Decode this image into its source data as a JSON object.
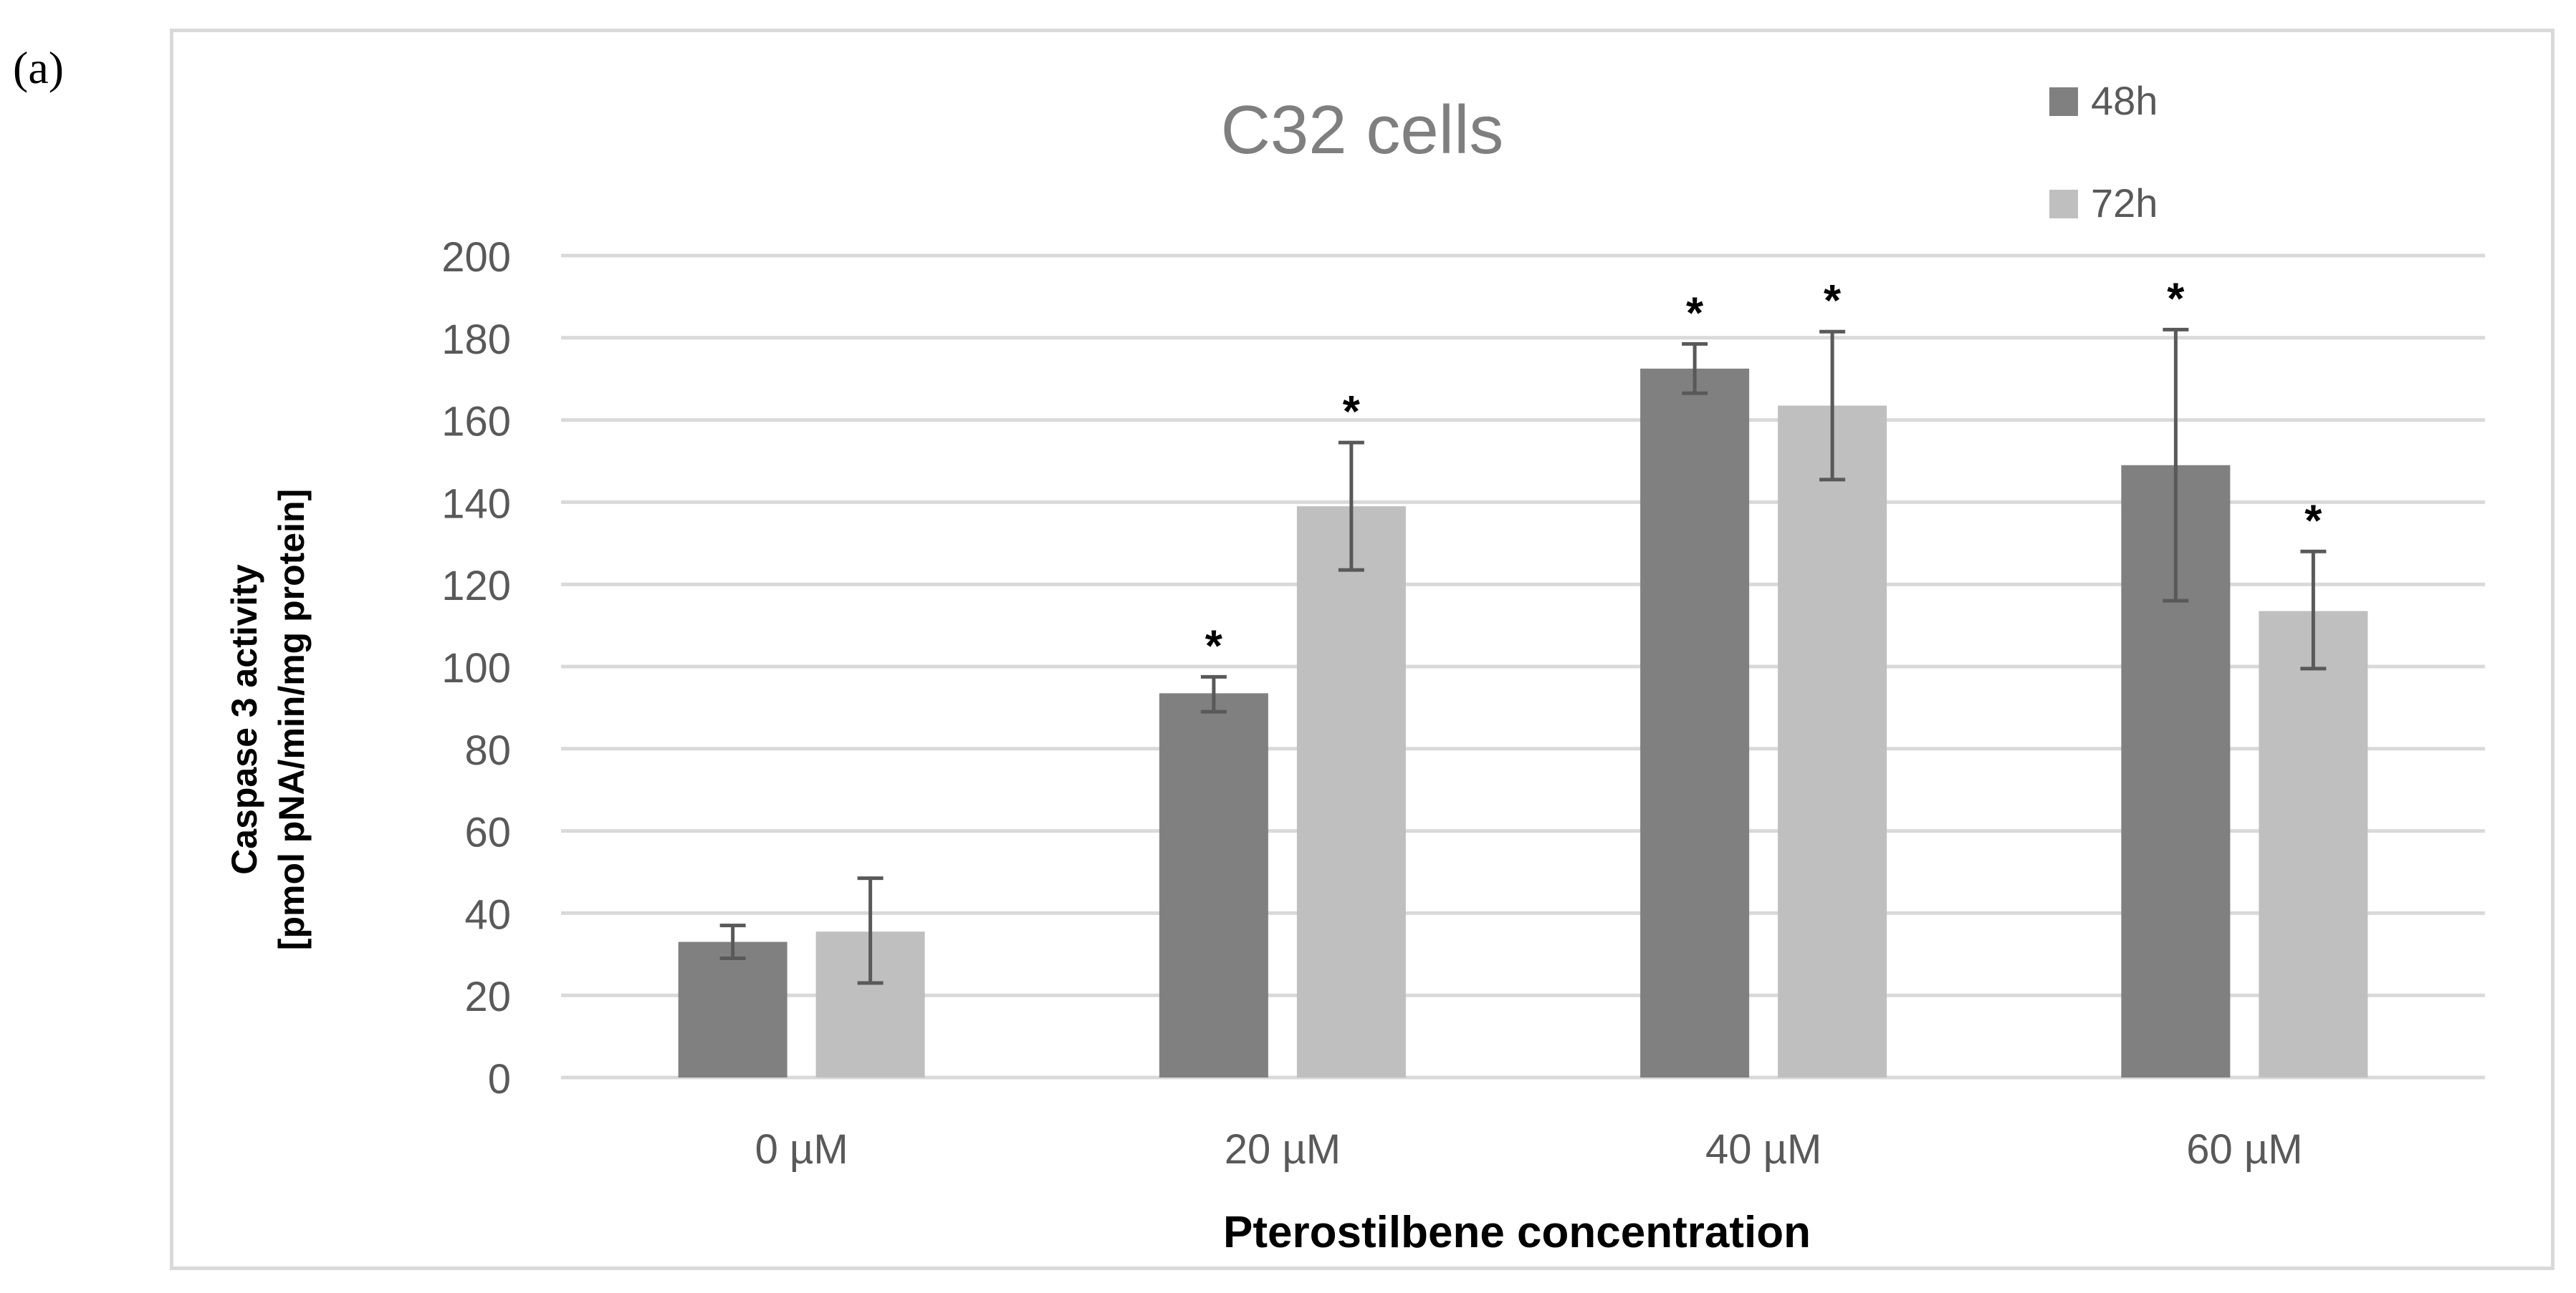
{
  "panel_label": "(a)",
  "chart_data": {
    "type": "bar",
    "title": "C32 cells",
    "xlabel": "Pterostilbene concentration",
    "ylabel_line1": "Caspase 3 activity",
    "ylabel_line2": "[pmol pNA/min/mg protein]",
    "ylim": [
      0,
      200
    ],
    "yticks": [
      "0",
      "20",
      "40",
      "60",
      "80",
      "100",
      "120",
      "140",
      "160",
      "180",
      "200"
    ],
    "grid": true,
    "legend_position": "top-right",
    "categories": [
      "0 µM",
      "20 µM",
      "40 µM",
      "60 µM"
    ],
    "series": [
      {
        "name": "48h",
        "color": "#808080",
        "values": [
          33,
          93.5,
          172.5,
          149
        ],
        "error_low": [
          29,
          89,
          166.5,
          116
        ],
        "error_high": [
          37,
          97.5,
          178.5,
          182
        ],
        "significance": [
          "",
          "*",
          "*",
          "*"
        ]
      },
      {
        "name": "72h",
        "color": "#bfbfbf",
        "values": [
          35.5,
          139,
          163.5,
          113.5
        ],
        "error_low": [
          23,
          123.5,
          145.5,
          99.5
        ],
        "error_high": [
          48.5,
          154.5,
          181.5,
          128
        ],
        "significance": [
          "",
          "*",
          "*",
          "*"
        ]
      }
    ]
  }
}
